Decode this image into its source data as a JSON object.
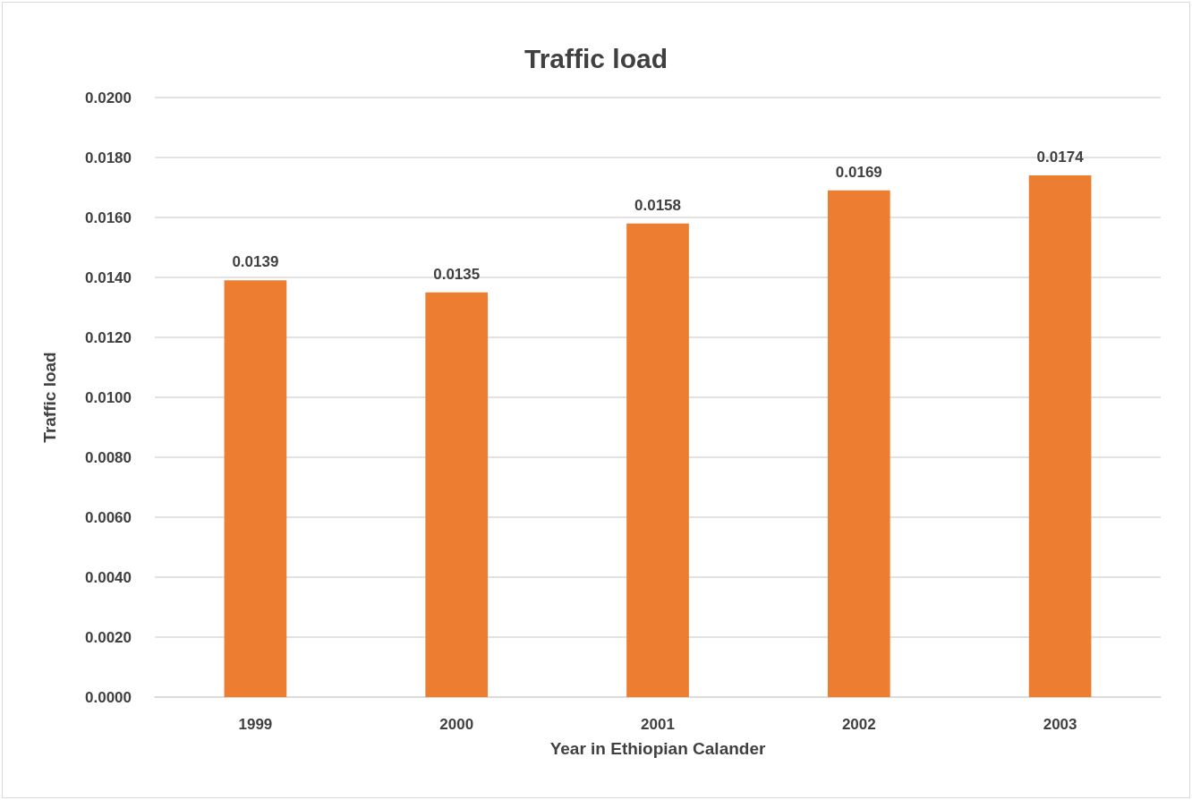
{
  "chart_data": {
    "type": "bar",
    "title": "Traffic load",
    "xlabel": "Year in Ethiopian Calander",
    "ylabel": "Traffic load",
    "categories": [
      "1999",
      "2000",
      "2001",
      "2002",
      "2003"
    ],
    "values": [
      0.0139,
      0.0135,
      0.0158,
      0.0169,
      0.0174
    ],
    "color": "#ed7d31",
    "ylim": [
      0,
      0.02
    ],
    "yticks": [
      {
        "value": 0,
        "label": "0.0000"
      },
      {
        "value": 0.002,
        "label": "0.0020"
      },
      {
        "value": 0.004,
        "label": "0.0040"
      },
      {
        "value": 0.006,
        "label": "0.0060"
      },
      {
        "value": 0.008,
        "label": "0.0080"
      },
      {
        "value": 0.01,
        "label": "0.0100"
      },
      {
        "value": 0.012,
        "label": "0.0120"
      },
      {
        "value": 0.014,
        "label": "0.0140"
      },
      {
        "value": 0.016,
        "label": "0.0160"
      },
      {
        "value": 0.018,
        "label": "0.0180"
      },
      {
        "value": 0.02,
        "label": "0.0200"
      }
    ],
    "grid": "y",
    "data_labels": true
  }
}
